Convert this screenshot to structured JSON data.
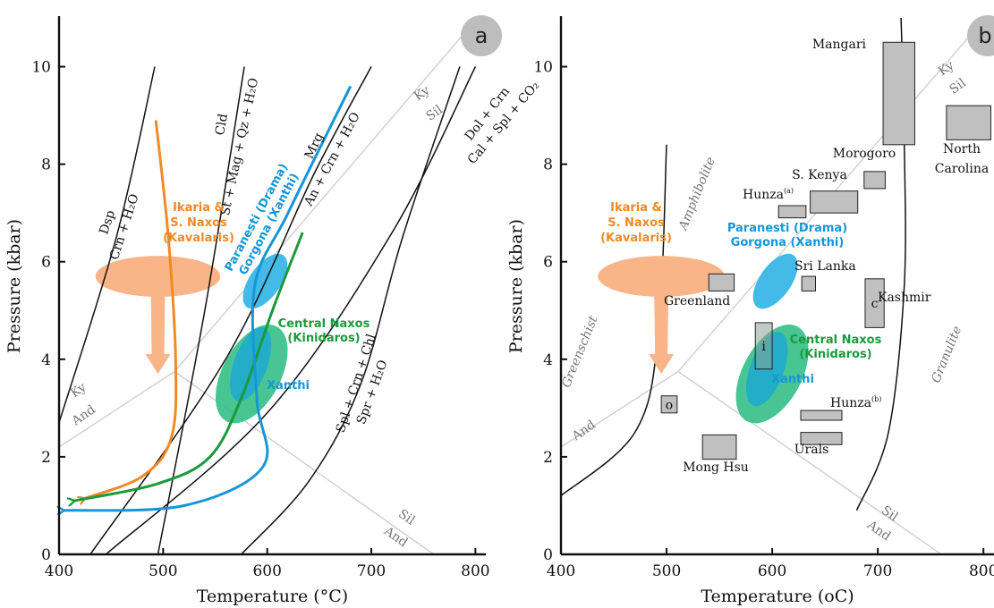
{
  "colors": {
    "orange": "#f08a24",
    "peach": "#f9b487",
    "green": "#1a9a3c",
    "blue": "#1696d6",
    "ellipse_blue": "#2fb3e6",
    "ellipse_green": "#33bf86",
    "box": "#c0c0c0",
    "grey_line": "#cfcfcf",
    "badge": "#bdbdbd"
  },
  "chart_data": [
    {
      "id": "a",
      "type": "line",
      "badge": "a",
      "xlabel": "Temperature (°C)",
      "ylabel": "Pressure (kbar)",
      "xlim": [
        400,
        810
      ],
      "ylim": [
        0,
        11
      ],
      "xticks": [
        400,
        500,
        600,
        700,
        800
      ],
      "xtick_labels": [
        "400",
        "500",
        "600",
        "700",
        "800"
      ],
      "yticks": [
        0,
        2,
        4,
        6,
        8,
        10
      ],
      "ytick_labels": [
        "0",
        "2",
        "4",
        "6",
        "8",
        "10"
      ],
      "grid": false,
      "reactions": [
        {
          "top": "Dsp",
          "bottom": "Crn + H₂O",
          "points": [
            [
              400,
              2.7
            ],
            [
              455,
              6.5
            ],
            [
              492,
              10.0
            ]
          ]
        },
        {
          "top": "Cld",
          "bottom": "St + Mag + Qz + H₂O",
          "points": [
            [
              495,
              0
            ],
            [
              540,
              5.0
            ],
            [
              578,
              10.0
            ]
          ]
        },
        {
          "top": "Mrg",
          "bottom": "An + Crn + H₂O",
          "points": [
            [
              430,
              0
            ],
            [
              560,
              4.0
            ],
            [
              645,
              7.8
            ],
            [
              700,
              10.0
            ]
          ]
        },
        {
          "top": "Dol + Crn",
          "bottom": "Cal + Spl + CO₂",
          "points": [
            [
              445,
              0
            ],
            [
              600,
              2.9
            ],
            [
              720,
              6.6
            ],
            [
              800,
              10.0
            ]
          ]
        },
        {
          "top": "Spl + Crn + Chl",
          "bottom": "Spr + H₂O",
          "points": [
            [
              575,
              0
            ],
            [
              640,
              1.5
            ],
            [
              690,
              3.5
            ],
            [
              730,
              6.5
            ],
            [
              785,
              10.0
            ]
          ]
        }
      ],
      "alsi_boundaries": [
        {
          "points": [
            [
              400,
              2.2
            ],
            [
              511,
              3.75
            ],
            [
              800,
              11.0
            ]
          ],
          "labels": [
            "Ky",
            "And"
          ]
        },
        {
          "points": [
            [
              511,
              3.75
            ],
            [
              760,
              0
            ]
          ],
          "labels": [
            "Sil",
            "And"
          ]
        },
        {
          "labels": [
            "Ky",
            "Sil"
          ]
        }
      ],
      "paths": [
        {
          "region": "Ikaria & S. Naxos (Kavalaris)",
          "color": "orange",
          "points": [
            [
              493,
              8.9
            ],
            [
              505,
              6.5
            ],
            [
              512,
              4.0
            ],
            [
              508,
              2.4
            ],
            [
              480,
              1.6
            ],
            [
              425,
              1.15
            ]
          ]
        },
        {
          "region": "Central Naxos (Kinidaros)",
          "color": "green",
          "points": [
            [
              634,
              6.6
            ],
            [
              605,
              5.0
            ],
            [
              575,
              3.2
            ],
            [
              545,
              2.0
            ],
            [
              495,
              1.45
            ],
            [
              415,
              1.1
            ]
          ]
        },
        {
          "region": "Paranesti (Drama) Gorgona (Xanthi)",
          "color": "blue",
          "points": [
            [
              680,
              9.6
            ],
            [
              620,
              7.0
            ],
            [
              588,
              5.5
            ],
            [
              590,
              3.2
            ],
            [
              596,
              1.8
            ],
            [
              520,
              1.0
            ],
            [
              405,
              0.9
            ]
          ]
        }
      ],
      "regions": [
        {
          "label_lines": [
            "Ikaria &",
            "S. Naxos",
            "(Kavalaris)"
          ],
          "color": "orange",
          "center": [
            495,
            5.7
          ],
          "rx": 60,
          "ry": 0.42
        },
        {
          "label_lines": [
            "Central Naxos",
            "(Kinidaros)"
          ],
          "color": "green",
          "center": [
            585,
            3.7
          ],
          "rx": 28,
          "ry": 1.1
        },
        {
          "label_lines": [
            "Paranesti (Drama)",
            "Gorgona (Xanthi)"
          ],
          "color": "blue",
          "center": [
            598,
            5.6
          ],
          "rx": 15,
          "ry": 0.65
        },
        {
          "label_lines": [
            "Xanthi"
          ],
          "color": "blue",
          "center": [
            584,
            3.9
          ],
          "rx": 16,
          "ry": 0.8
        }
      ]
    },
    {
      "id": "b",
      "type": "scatter",
      "badge": "b",
      "xlabel": "Temperature (oC)",
      "ylabel": "Pressure (kbar)",
      "xlim": [
        400,
        810
      ],
      "ylim": [
        0,
        11
      ],
      "xticks": [
        400,
        500,
        600,
        700,
        800
      ],
      "xtick_labels": [
        "400",
        "500",
        "600",
        "700",
        "800"
      ],
      "yticks": [
        0,
        2,
        4,
        6,
        8,
        10
      ],
      "ytick_labels": [
        "0",
        "2",
        "4",
        "6",
        "8",
        "10"
      ],
      "grid": false,
      "facies": [
        "Greenschist",
        "Amphibolite",
        "Granulite"
      ],
      "facies_boundaries": [
        {
          "name": "Greenschist-Amphibolite",
          "points": [
            [
              400,
              1.2
            ],
            [
              470,
              2.5
            ],
            [
              492,
              4.5
            ],
            [
              500,
              8.4
            ]
          ]
        },
        {
          "name": "Amphibolite-Granulite",
          "points": [
            [
              680,
              0.9
            ],
            [
              710,
              2.5
            ],
            [
              725,
              5.5
            ],
            [
              725,
              8.5
            ],
            [
              722,
              11.0
            ]
          ]
        }
      ],
      "localities": [
        {
          "name": "Mangari",
          "x": [
            705,
            735
          ],
          "y": [
            8.4,
            10.5
          ]
        },
        {
          "name": "North Carolina",
          "x": [
            765,
            807
          ],
          "y": [
            8.5,
            9.2
          ]
        },
        {
          "name": "Morogoro",
          "x": [
            687,
            707
          ],
          "y": [
            7.5,
            7.85
          ]
        },
        {
          "name": "S. Kenya",
          "x": [
            636,
            681
          ],
          "y": [
            7.0,
            7.45
          ]
        },
        {
          "name": "Hunza(a)",
          "x": [
            606,
            632
          ],
          "y": [
            6.9,
            7.15
          ]
        },
        {
          "name": "Sri Lanka",
          "x": [
            628,
            641
          ],
          "y": [
            5.4,
            5.7
          ]
        },
        {
          "name": "Greenland",
          "x": [
            540,
            564
          ],
          "y": [
            5.4,
            5.75
          ]
        },
        {
          "name": "Kashmir",
          "tag": "c",
          "x": [
            688,
            706
          ],
          "y": [
            4.65,
            5.65
          ]
        },
        {
          "name": "i",
          "tag": "i",
          "x": [
            584,
            600
          ],
          "y": [
            3.8,
            4.75
          ]
        },
        {
          "name": "o",
          "tag": "o",
          "x": [
            495,
            510
          ],
          "y": [
            2.9,
            3.25
          ]
        },
        {
          "name": "Hunza(b)",
          "x": [
            627,
            666
          ],
          "y": [
            2.75,
            2.95
          ]
        },
        {
          "name": "Urals",
          "x": [
            627,
            666
          ],
          "y": [
            2.25,
            2.5
          ]
        },
        {
          "name": "Mong Hsu",
          "x": [
            534,
            566
          ],
          "y": [
            1.95,
            2.45
          ]
        }
      ],
      "regions": [
        {
          "label_lines": [
            "Ikaria &",
            "S. Naxos",
            "(Kavalaris)"
          ],
          "color": "orange",
          "center": [
            495,
            5.7
          ],
          "rx": 60,
          "ry": 0.42
        },
        {
          "label_lines": [
            "Central Naxos",
            "(Kinidaros)"
          ],
          "color": "green",
          "center": [
            600,
            3.7
          ],
          "rx": 28,
          "ry": 1.1
        },
        {
          "label_lines": [
            "Paranesti (Drama)",
            "Gorgona (Xanthi)"
          ],
          "color": "blue",
          "center": [
            603,
            5.6
          ],
          "rx": 15,
          "ry": 0.65
        },
        {
          "label_lines": [
            "Xanthi"
          ],
          "color": "blue",
          "center": [
            595,
            3.8
          ],
          "rx": 16,
          "ry": 0.8
        }
      ]
    }
  ]
}
